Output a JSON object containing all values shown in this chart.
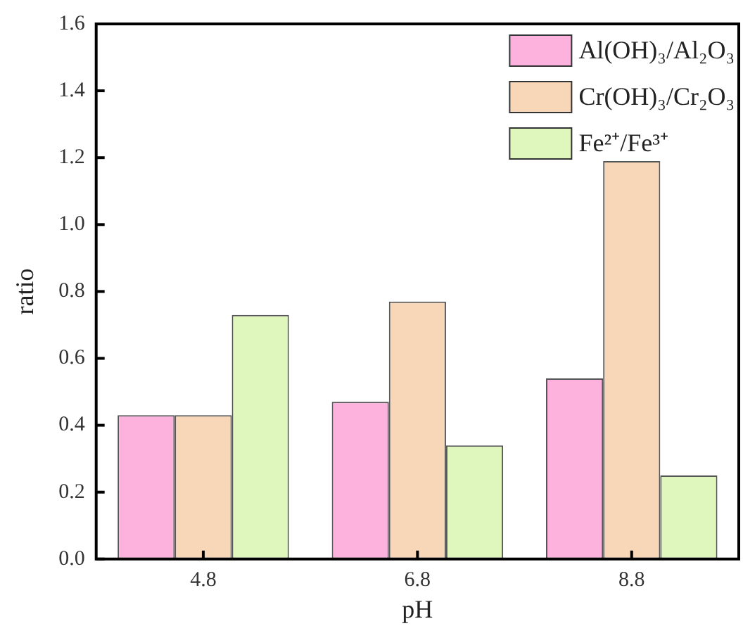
{
  "chart_data": {
    "type": "bar",
    "xlabel": "pH",
    "ylabel": "ratio",
    "categories": [
      "4.8",
      "6.8",
      "8.8"
    ],
    "series": [
      {
        "name": "Al(OH)₃/Al₂O₃",
        "color": "#fdb1dd",
        "values": [
          0.43,
          0.47,
          0.54
        ]
      },
      {
        "name": "Cr(OH)₃/Cr₂O₃",
        "color": "#f8d7b9",
        "values": [
          0.43,
          0.77,
          1.19
        ]
      },
      {
        "name": "Fe²⁺/Fe³⁺",
        "color": "#dff7bd",
        "values": [
          0.73,
          0.34,
          0.25
        ]
      }
    ],
    "ylim": [
      0,
      1.6
    ],
    "yticks": [
      {
        "value": 0,
        "label": "0.0"
      },
      {
        "value": 0.2,
        "label": "0.2"
      },
      {
        "value": 0.4,
        "label": "0.4"
      },
      {
        "value": 0.6,
        "label": "0.6"
      },
      {
        "value": 0.8,
        "label": "0.8"
      },
      {
        "value": 1,
        "label": "1.0"
      },
      {
        "value": 1.2,
        "label": "1.2"
      },
      {
        "value": 1.4,
        "label": "1.4"
      },
      {
        "value": 1.6,
        "label": "1.6"
      }
    ],
    "grid": false,
    "legend": "top right"
  }
}
